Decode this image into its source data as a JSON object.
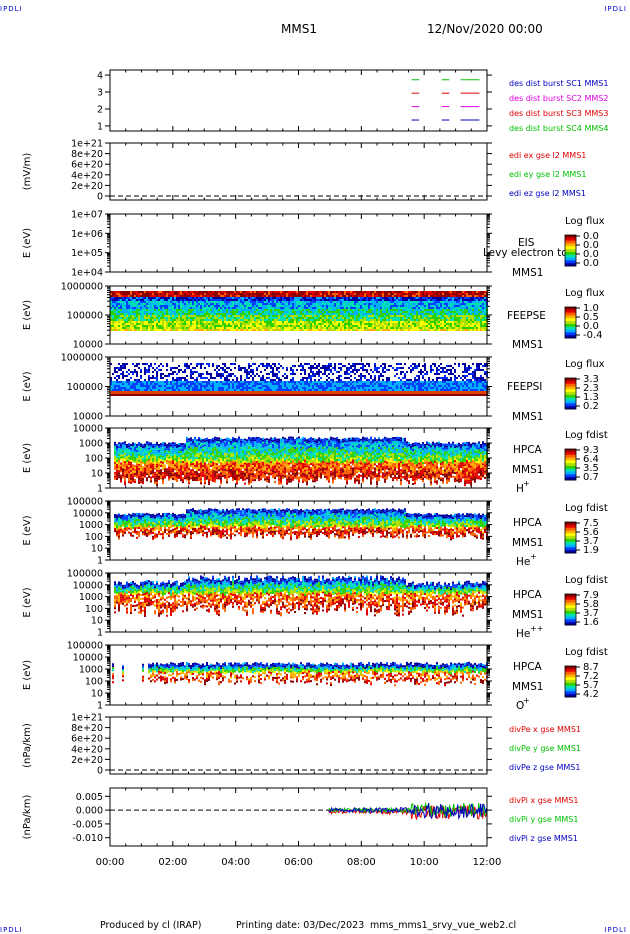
{
  "corner_tag": "IPDLI",
  "header": {
    "spacecraft": "MMS1",
    "datetime": "12/Nov/2020 00:00"
  },
  "footer": {
    "produced": "Produced by cl (IRAP)",
    "printing": "Printing date: 03/Dec/2023",
    "script": "mms_mms1_srvy_vue_web2.cl"
  },
  "colors": {
    "red": "#e00000",
    "green": "#00c000",
    "magenta": "#e000e0",
    "blue": "#0000c0",
    "spectral": [
      "#0000a0",
      "#0040ff",
      "#00b0ff",
      "#00e0b0",
      "#30d000",
      "#b0e000",
      "#ffff00",
      "#ffb000",
      "#ff6000",
      "#e00000",
      "#8a0000"
    ]
  },
  "chart_data": {
    "type": "multi-panel time series",
    "x_range": [
      "00:00",
      "12:00"
    ],
    "x_ticks": [
      "00:00",
      "02:00",
      "04:00",
      "06:00",
      "08:00",
      "10:00",
      "12:00"
    ],
    "panels": [
      {
        "id": "burst",
        "type": "timeline",
        "ylabel": "",
        "yticks": [
          "4",
          "3",
          "2",
          "1"
        ],
        "labels": [
          {
            "text": "des dist burst SC1 MMS1",
            "color": "#0000c0"
          },
          {
            "text": "des dist burst SC2 MMS2",
            "color": "#e000e0"
          },
          {
            "text": "des dist burst SC3 MMS3",
            "color": "#e00000"
          },
          {
            "text": "des dist burst SC4 MMS4",
            "color": "#00c000"
          }
        ]
      },
      {
        "id": "edi",
        "type": "line",
        "ylabel": "(mV/m)",
        "yticks": [
          "1e+21",
          "8e+20",
          "6e+20",
          "4e+20",
          "2e+20",
          "0"
        ],
        "labels": [
          {
            "text": "edi ex gse l2 MMS1",
            "color": "#e00000"
          },
          {
            "text": "edi ey gse l2 MMS1",
            "color": "#00c000"
          },
          {
            "text": "edi ez gse l2 MMS1",
            "color": "#0000c0"
          }
        ]
      },
      {
        "id": "eis",
        "type": "heatmap",
        "ylabel": "E (eV)",
        "yticks": [
          "1e+07",
          "1e+06",
          "1e+05",
          "1e+04"
        ],
        "instrument": "EIS",
        "sub": "MMS1",
        "overlay": "Levy electron to",
        "cbar_title": "Log flux",
        "cbar_ticks": [
          "0.0",
          "0.0",
          "0.0",
          "0.0"
        ]
      },
      {
        "id": "feepse",
        "type": "heatmap",
        "ylabel": "E (eV)",
        "yticks": [
          "1000000",
          "100000",
          "10000"
        ],
        "instrument": "FEEPSE",
        "sub": "MMS1",
        "cbar_title": "Log flux",
        "cbar_ticks": [
          "1.0",
          "0.5",
          "0.0",
          "-0.4"
        ]
      },
      {
        "id": "feepsi",
        "type": "heatmap",
        "ylabel": "E (eV)",
        "yticks": [
          "1000000",
          "100000",
          "10000"
        ],
        "instrument": "FEEPSI",
        "sub": "MMS1",
        "cbar_title": "Log flux",
        "cbar_ticks": [
          "3.3",
          "2.3",
          "1.3",
          "0.2"
        ]
      },
      {
        "id": "hpca_h",
        "type": "heatmap",
        "ylabel": "E (eV)",
        "yticks": [
          "10000",
          "1000",
          "100",
          "10",
          "1"
        ],
        "instrument": "HPCA",
        "sub": "MMS1",
        "species": "H",
        "charge": "+",
        "cbar_title": "Log fdist",
        "cbar_ticks": [
          "9.3",
          "6.4",
          "3.5",
          "0.7"
        ]
      },
      {
        "id": "hpca_he1",
        "type": "heatmap",
        "ylabel": "E (eV)",
        "yticks": [
          "100000",
          "10000",
          "1000",
          "100",
          "10",
          "1"
        ],
        "instrument": "HPCA",
        "sub": "MMS1",
        "species": "He",
        "charge": "+",
        "cbar_title": "Log fdist",
        "cbar_ticks": [
          "7.5",
          "5.6",
          "3.7",
          "1.9"
        ]
      },
      {
        "id": "hpca_he2",
        "type": "heatmap",
        "ylabel": "E (eV)",
        "yticks": [
          "100000",
          "10000",
          "1000",
          "100",
          "10",
          "1"
        ],
        "instrument": "HPCA",
        "sub": "MMS1",
        "species": "He",
        "charge": "++",
        "cbar_title": "Log fdist",
        "cbar_ticks": [
          "7.9",
          "5.8",
          "3.7",
          "1.6"
        ]
      },
      {
        "id": "hpca_o",
        "type": "heatmap",
        "ylabel": "E (eV)",
        "yticks": [
          "100000",
          "10000",
          "1000",
          "100",
          "10",
          "1"
        ],
        "instrument": "HPCA",
        "sub": "MMS1",
        "species": "O",
        "charge": "+",
        "cbar_title": "Log fdist",
        "cbar_ticks": [
          "8.7",
          "7.2",
          "5.7",
          "4.2"
        ]
      },
      {
        "id": "divpe",
        "type": "line",
        "ylabel": "(nPa/km)",
        "yticks": [
          "1e+21",
          "8e+20",
          "6e+20",
          "4e+20",
          "2e+20",
          "0"
        ],
        "labels": [
          {
            "text": "divPe x gse MMS1",
            "color": "#e00000"
          },
          {
            "text": "divPe y gse MMS1",
            "color": "#00c000"
          },
          {
            "text": "divPe z gse MMS1",
            "color": "#0000c0"
          }
        ]
      },
      {
        "id": "divpi",
        "type": "line",
        "ylabel": "(nPa/km)",
        "yticks": [
          "0.005",
          "0.000",
          "-0.005",
          "-0.010"
        ],
        "ylim": [
          -0.013,
          0.008
        ],
        "labels": [
          {
            "text": "divPi x gse MMS1",
            "color": "#e00000"
          },
          {
            "text": "divPi y gse MMS1",
            "color": "#00c000"
          },
          {
            "text": "divPi z gse MMS1",
            "color": "#0000c0"
          }
        ]
      }
    ]
  }
}
